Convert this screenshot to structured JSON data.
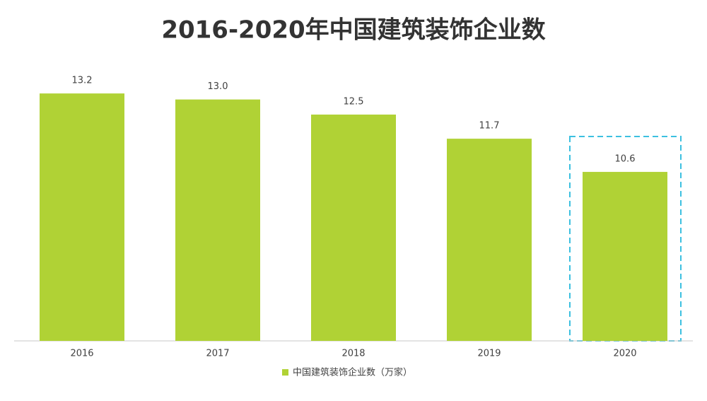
{
  "chart_data": {
    "type": "bar",
    "title": "2016-2020年中国建筑装饰企业数",
    "categories": [
      "2016",
      "2017",
      "2018",
      "2019",
      "2020"
    ],
    "series": [
      {
        "name": "中国建筑装饰企业数（万家）",
        "color": "#b0d235",
        "values": [
          13.2,
          13.0,
          12.5,
          11.7,
          10.6
        ],
        "value_labels": [
          "13.2",
          "13.0",
          "12.5",
          "11.7",
          "10.6"
        ]
      }
    ],
    "ylim": [
      5,
      14
    ],
    "legend": "bottom"
  }
}
